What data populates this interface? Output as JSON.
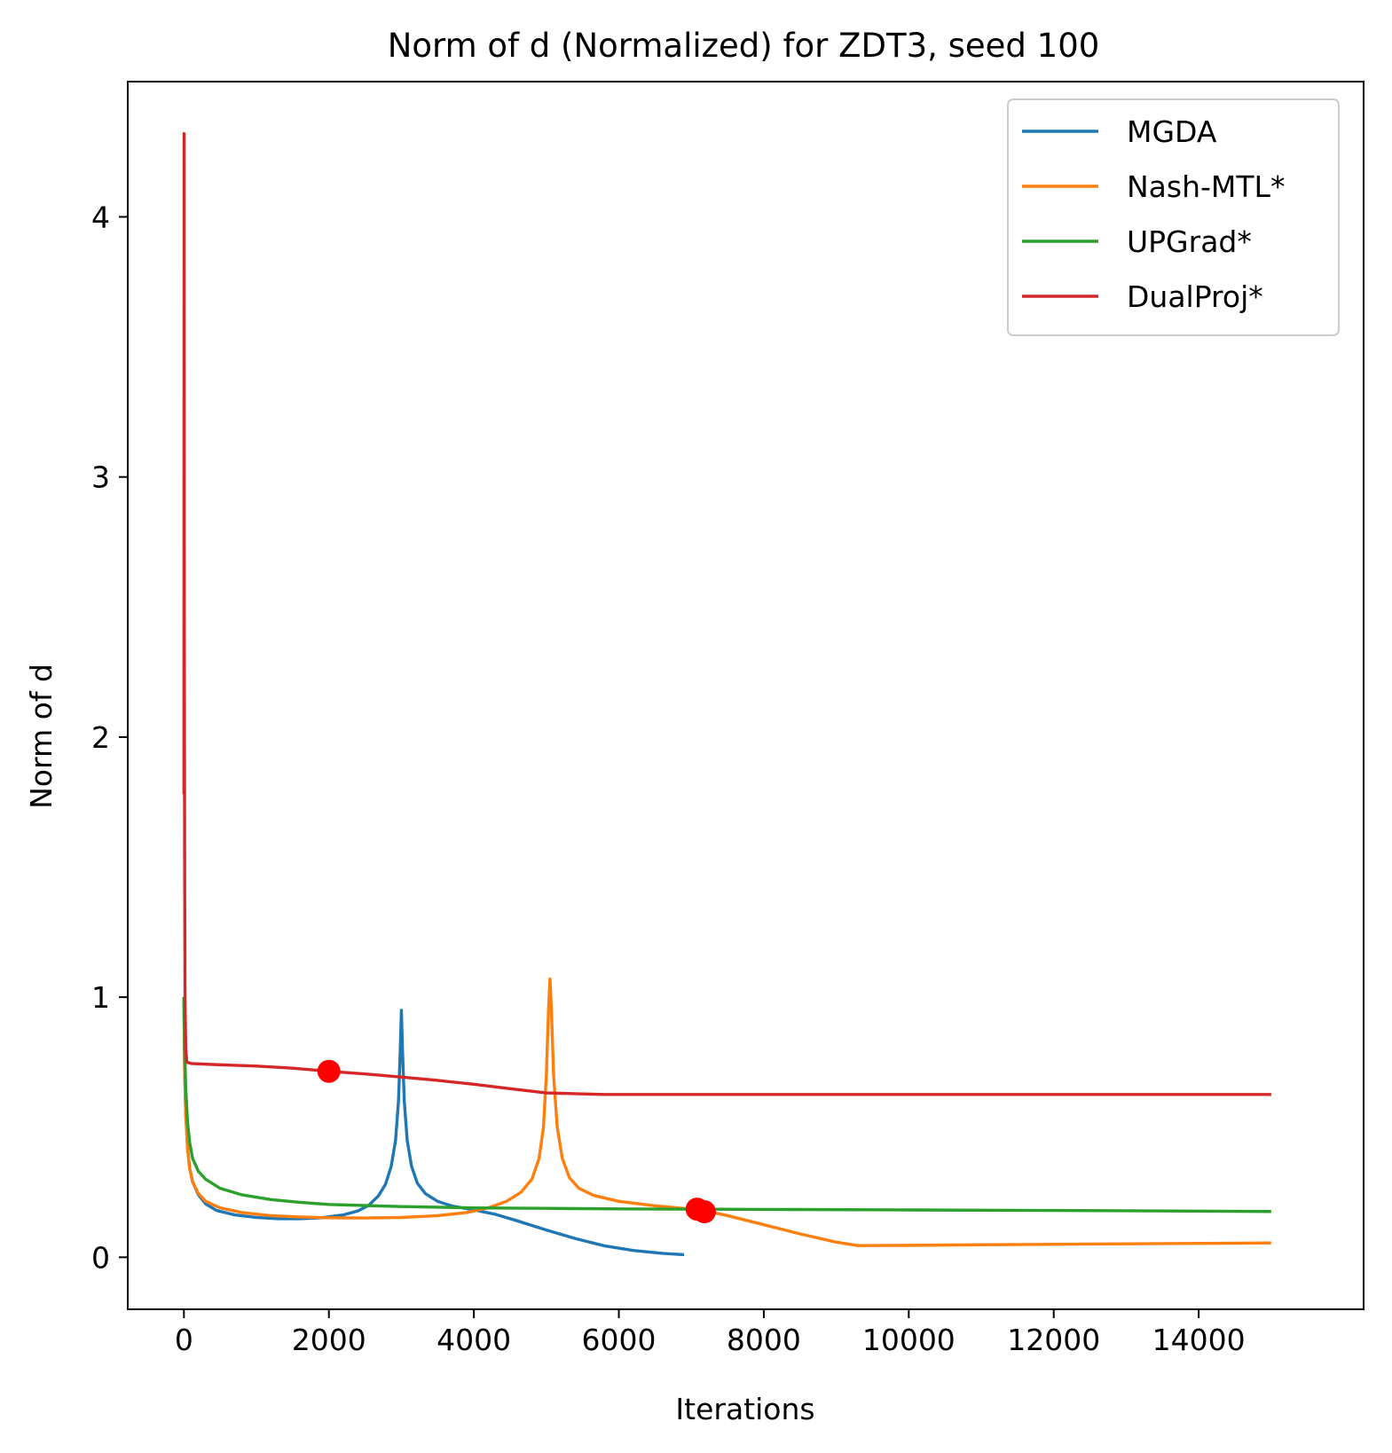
{
  "chart_data": {
    "type": "line",
    "title": "Norm of d (Normalized) for ZDT3, seed 100",
    "xlabel": "Iterations",
    "ylabel": "Norm of d",
    "xlim": [
      -775,
      16275
    ],
    "ylim": [
      -0.2,
      4.52
    ],
    "xticks": [
      0,
      2000,
      4000,
      6000,
      8000,
      10000,
      12000,
      14000
    ],
    "yticks": [
      0,
      1,
      2,
      3,
      4
    ],
    "grid": false,
    "legend_position": "top-right",
    "series": [
      {
        "name": "MGDA",
        "color": "#1f77b4",
        "points": [
          [
            0,
            1.0
          ],
          [
            10,
            0.72
          ],
          [
            25,
            0.55
          ],
          [
            50,
            0.42
          ],
          [
            80,
            0.34
          ],
          [
            120,
            0.29
          ],
          [
            200,
            0.24
          ],
          [
            300,
            0.205
          ],
          [
            450,
            0.18
          ],
          [
            700,
            0.163
          ],
          [
            1000,
            0.153
          ],
          [
            1300,
            0.148
          ],
          [
            1600,
            0.148
          ],
          [
            1900,
            0.152
          ],
          [
            2200,
            0.163
          ],
          [
            2400,
            0.178
          ],
          [
            2550,
            0.2
          ],
          [
            2680,
            0.235
          ],
          [
            2780,
            0.28
          ],
          [
            2860,
            0.35
          ],
          [
            2920,
            0.45
          ],
          [
            2960,
            0.6
          ],
          [
            2985,
            0.8
          ],
          [
            3000,
            0.95
          ],
          [
            3015,
            0.8
          ],
          [
            3040,
            0.6
          ],
          [
            3080,
            0.45
          ],
          [
            3140,
            0.35
          ],
          [
            3220,
            0.285
          ],
          [
            3330,
            0.245
          ],
          [
            3500,
            0.215
          ],
          [
            3700,
            0.197
          ],
          [
            4000,
            0.182
          ],
          [
            4300,
            0.165
          ],
          [
            4600,
            0.14
          ],
          [
            5000,
            0.105
          ],
          [
            5400,
            0.072
          ],
          [
            5800,
            0.044
          ],
          [
            6200,
            0.026
          ],
          [
            6600,
            0.015
          ],
          [
            6900,
            0.01
          ]
        ]
      },
      {
        "name": "Nash-MTL*",
        "color": "#ff7f0e",
        "points": [
          [
            0,
            1.0
          ],
          [
            10,
            0.72
          ],
          [
            25,
            0.55
          ],
          [
            50,
            0.42
          ],
          [
            80,
            0.34
          ],
          [
            120,
            0.29
          ],
          [
            200,
            0.245
          ],
          [
            300,
            0.215
          ],
          [
            500,
            0.19
          ],
          [
            800,
            0.172
          ],
          [
            1200,
            0.16
          ],
          [
            1600,
            0.155
          ],
          [
            2000,
            0.152
          ],
          [
            2500,
            0.151
          ],
          [
            3000,
            0.153
          ],
          [
            3500,
            0.16
          ],
          [
            3900,
            0.172
          ],
          [
            4200,
            0.19
          ],
          [
            4450,
            0.215
          ],
          [
            4650,
            0.25
          ],
          [
            4800,
            0.3
          ],
          [
            4900,
            0.38
          ],
          [
            4960,
            0.5
          ],
          [
            5000,
            0.7
          ],
          [
            5030,
            0.95
          ],
          [
            5050,
            1.07
          ],
          [
            5070,
            0.95
          ],
          [
            5100,
            0.7
          ],
          [
            5150,
            0.5
          ],
          [
            5220,
            0.38
          ],
          [
            5320,
            0.305
          ],
          [
            5450,
            0.265
          ],
          [
            5650,
            0.238
          ],
          [
            6000,
            0.215
          ],
          [
            6500,
            0.198
          ],
          [
            7000,
            0.185
          ],
          [
            7200,
            0.178
          ],
          [
            7500,
            0.16
          ],
          [
            8000,
            0.125
          ],
          [
            8500,
            0.09
          ],
          [
            9000,
            0.058
          ],
          [
            9300,
            0.045
          ],
          [
            10000,
            0.046
          ],
          [
            12000,
            0.05
          ],
          [
            15000,
            0.055
          ]
        ]
      },
      {
        "name": "UPGrad*",
        "color": "#2ca02c",
        "points": [
          [
            0,
            1.0
          ],
          [
            10,
            0.8
          ],
          [
            25,
            0.65
          ],
          [
            50,
            0.52
          ],
          [
            80,
            0.44
          ],
          [
            120,
            0.38
          ],
          [
            200,
            0.33
          ],
          [
            300,
            0.3
          ],
          [
            500,
            0.265
          ],
          [
            800,
            0.24
          ],
          [
            1200,
            0.222
          ],
          [
            1600,
            0.211
          ],
          [
            2000,
            0.203
          ],
          [
            3000,
            0.195
          ],
          [
            4000,
            0.19
          ],
          [
            5000,
            0.188
          ],
          [
            6000,
            0.186
          ],
          [
            7000,
            0.185
          ],
          [
            8000,
            0.184
          ],
          [
            10000,
            0.182
          ],
          [
            12000,
            0.18
          ],
          [
            15000,
            0.176
          ]
        ]
      },
      {
        "name": "DualProj*",
        "color": "#d62728",
        "points": [
          [
            0,
            1.78
          ],
          [
            2,
            4.32
          ],
          [
            5,
            2.5
          ],
          [
            10,
            1.5
          ],
          [
            15,
            1.0
          ],
          [
            25,
            0.8
          ],
          [
            40,
            0.75
          ],
          [
            100,
            0.745
          ],
          [
            500,
            0.74
          ],
          [
            1000,
            0.735
          ],
          [
            1500,
            0.727
          ],
          [
            2000,
            0.715
          ],
          [
            2500,
            0.705
          ],
          [
            3000,
            0.693
          ],
          [
            3500,
            0.68
          ],
          [
            4000,
            0.665
          ],
          [
            4500,
            0.648
          ],
          [
            5000,
            0.632
          ],
          [
            5500,
            0.628
          ],
          [
            5800,
            0.626
          ],
          [
            6500,
            0.626
          ],
          [
            8000,
            0.626
          ],
          [
            10000,
            0.626
          ],
          [
            12000,
            0.626
          ],
          [
            15000,
            0.626
          ]
        ]
      }
    ],
    "markers": {
      "color": "#ff0000",
      "points": [
        [
          2000,
          0.715
        ],
        [
          7080,
          0.185
        ],
        [
          7180,
          0.175
        ]
      ]
    }
  }
}
